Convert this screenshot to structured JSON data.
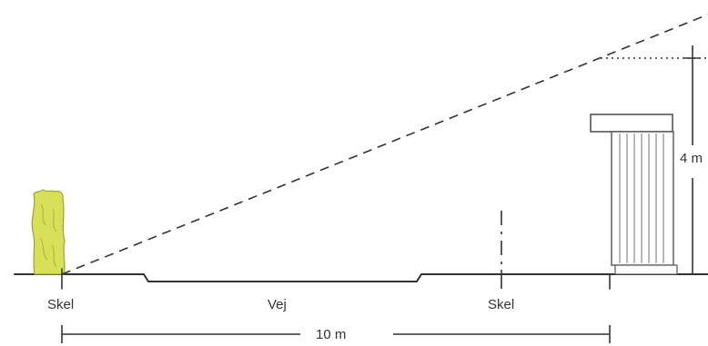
{
  "labels": {
    "skel_left": "Skel",
    "road": "Vej",
    "skel_right": "Skel",
    "distance": "10 m",
    "height": "4 m"
  },
  "colors": {
    "ink": "#333333",
    "hedge_fill": "#d8e05a",
    "hedge_edge": "#9aa235",
    "building_stroke": "#555555"
  }
}
